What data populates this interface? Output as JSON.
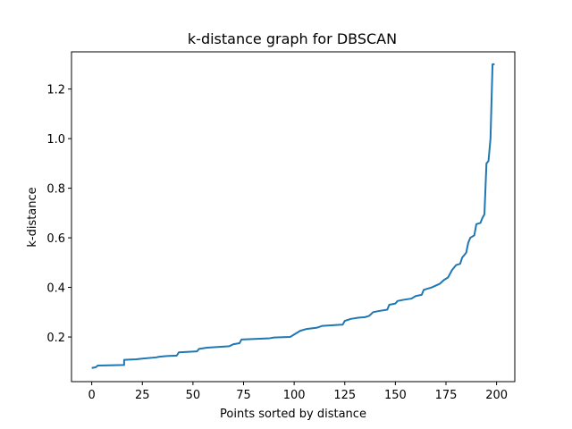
{
  "chart_data": {
    "type": "line",
    "title": "k-distance graph for DBSCAN",
    "xlabel": "Points sorted by distance",
    "ylabel": "k-distance",
    "xlim": [
      -10,
      209
    ],
    "ylim": [
      0.02,
      1.35
    ],
    "xticks": [
      0,
      25,
      50,
      75,
      100,
      125,
      150,
      175,
      200
    ],
    "yticks": [
      0.2,
      0.4,
      0.6,
      0.8,
      1.0,
      1.2
    ],
    "ytick_labels": [
      "0.2",
      "0.4",
      "0.6",
      "0.8",
      "1.0",
      "1.2"
    ],
    "grid": false,
    "series_color": "#1f77b4",
    "series": [
      {
        "points": [
          [
            0,
            0.075
          ],
          [
            2,
            0.078
          ],
          [
            3,
            0.085
          ],
          [
            16,
            0.087
          ],
          [
            16,
            0.108
          ],
          [
            22,
            0.11
          ],
          [
            25,
            0.113
          ],
          [
            32,
            0.118
          ],
          [
            33,
            0.12
          ],
          [
            37,
            0.123
          ],
          [
            42,
            0.125
          ],
          [
            43,
            0.138
          ],
          [
            52,
            0.142
          ],
          [
            53,
            0.152
          ],
          [
            57,
            0.157
          ],
          [
            63,
            0.16
          ],
          [
            68,
            0.163
          ],
          [
            70,
            0.171
          ],
          [
            73,
            0.175
          ],
          [
            74,
            0.19
          ],
          [
            88,
            0.195
          ],
          [
            90,
            0.198
          ],
          [
            98,
            0.2
          ],
          [
            100,
            0.21
          ],
          [
            103,
            0.225
          ],
          [
            106,
            0.232
          ],
          [
            111,
            0.237
          ],
          [
            114,
            0.245
          ],
          [
            124,
            0.25
          ],
          [
            125,
            0.265
          ],
          [
            128,
            0.273
          ],
          [
            132,
            0.278
          ],
          [
            135,
            0.28
          ],
          [
            137,
            0.285
          ],
          [
            139,
            0.3
          ],
          [
            142,
            0.305
          ],
          [
            146,
            0.31
          ],
          [
            147,
            0.33
          ],
          [
            150,
            0.335
          ],
          [
            151,
            0.345
          ],
          [
            154,
            0.35
          ],
          [
            158,
            0.355
          ],
          [
            160,
            0.365
          ],
          [
            163,
            0.37
          ],
          [
            164,
            0.39
          ],
          [
            168,
            0.4
          ],
          [
            172,
            0.415
          ],
          [
            174,
            0.43
          ],
          [
            176,
            0.44
          ],
          [
            178,
            0.47
          ],
          [
            180,
            0.49
          ],
          [
            182,
            0.495
          ],
          [
            183,
            0.52
          ],
          [
            185,
            0.54
          ],
          [
            186,
            0.58
          ],
          [
            187,
            0.6
          ],
          [
            189,
            0.61
          ],
          [
            190,
            0.655
          ],
          [
            192,
            0.66
          ],
          [
            193,
            0.68
          ],
          [
            194,
            0.695
          ],
          [
            195,
            0.9
          ],
          [
            196,
            0.91
          ],
          [
            197,
            1.0
          ],
          [
            198,
            1.3
          ],
          [
            199,
            1.3
          ]
        ]
      }
    ]
  }
}
